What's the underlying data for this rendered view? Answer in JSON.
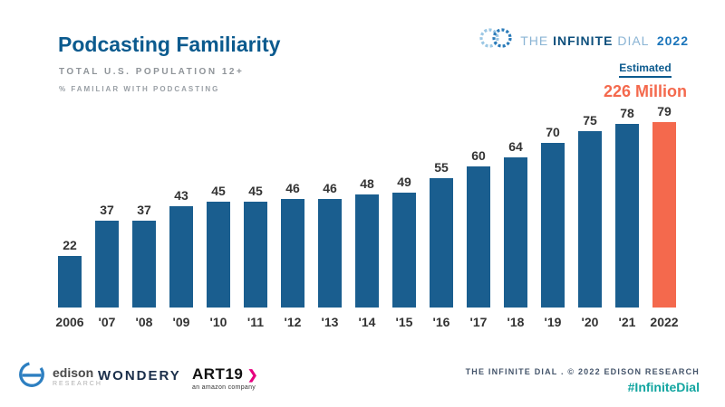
{
  "header": {
    "title": "Podcasting Familiarity",
    "subtitle": "TOTAL U.S. POPULATION 12+",
    "note": "% FAMILIAR WITH PODCASTING"
  },
  "brand": {
    "the": "THE",
    "infinite": "INFINITE",
    "dial": "DIAL",
    "year": "2022"
  },
  "annotation": {
    "label": "Estimated",
    "value": "226 Million"
  },
  "chart_data": {
    "type": "bar",
    "title": "Podcasting Familiarity",
    "subtitle": "TOTAL U.S. POPULATION 12+",
    "ylabel": "% FAMILIAR WITH PODCASTING",
    "categories": [
      "2006",
      "'07",
      "'08",
      "'09",
      "'10",
      "'11",
      "'12",
      "'13",
      "'14",
      "'15",
      "'16",
      "'17",
      "'18",
      "'19",
      "'20",
      "'21",
      "2022"
    ],
    "values": [
      22,
      37,
      37,
      43,
      45,
      45,
      46,
      46,
      48,
      49,
      55,
      60,
      64,
      70,
      75,
      78,
      79
    ],
    "ylim": [
      0,
      100
    ],
    "grid": false,
    "legend": "none",
    "bar_color": "#1a5e8f",
    "highlight_color": "#f4694d",
    "highlight_index": 16,
    "highlight_annotation": "Estimated 226 Million"
  },
  "footer": {
    "edison_name": "edison",
    "edison_sub": "RESEARCH",
    "wondery": "WONDERY",
    "art19_name": "ART19",
    "art19_sub": "an amazon company",
    "credit": "THE INFINITE DIAL . © 2022 EDISON RESEARCH",
    "hashtag": "#InfiniteDial"
  }
}
